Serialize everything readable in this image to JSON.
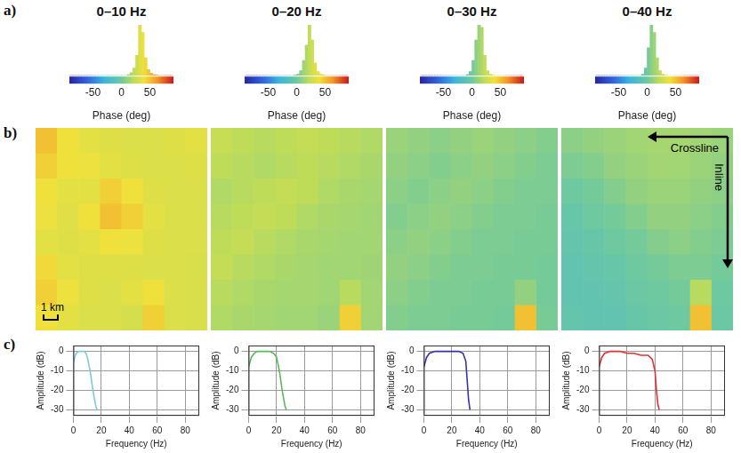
{
  "panel_labels": [
    "a)",
    "b)",
    "c)"
  ],
  "chart_data": [
    {
      "type": "histogram",
      "title": "0–10 Hz",
      "xlabel": "Phase (deg)",
      "bins": [
        -90,
        -85,
        -80,
        -75,
        -70,
        -65,
        -60,
        -55,
        -50,
        -45,
        -40,
        -35,
        -30,
        -25,
        -20,
        -15,
        -10,
        -5,
        0,
        5,
        10,
        15,
        20,
        25,
        30,
        35,
        40,
        45,
        50,
        55,
        60,
        65,
        70,
        75,
        80,
        85,
        90
      ],
      "counts": [
        0,
        0,
        0,
        0,
        0,
        0,
        0,
        0,
        0,
        0,
        0,
        0,
        0,
        0,
        0,
        0,
        0,
        0,
        0,
        0,
        2,
        6,
        15,
        40,
        100,
        85,
        35,
        12,
        5,
        2,
        1,
        0,
        0,
        0,
        0,
        0
      ],
      "xlim": [
        -90,
        90
      ],
      "xticks": [
        -50,
        0,
        50
      ],
      "ylim": [
        0,
        100
      ],
      "tick_labels": "x",
      "grid": false,
      "color_range": [
        -90,
        90
      ]
    },
    {
      "type": "histogram",
      "title": "0–20 Hz",
      "xlabel": "Phase (deg)",
      "bins": [
        -90,
        -85,
        -80,
        -75,
        -70,
        -65,
        -60,
        -55,
        -50,
        -45,
        -40,
        -35,
        -30,
        -25,
        -20,
        -15,
        -10,
        -5,
        0,
        5,
        10,
        15,
        20,
        25,
        30,
        35,
        40,
        45,
        50,
        55,
        60,
        65,
        70,
        75,
        80,
        85,
        90
      ],
      "counts": [
        0,
        0,
        0,
        0,
        0,
        0,
        0,
        0,
        0,
        0,
        0,
        0,
        0,
        0,
        0,
        0,
        0,
        1,
        3,
        10,
        30,
        60,
        100,
        70,
        25,
        8,
        3,
        1,
        0,
        0,
        0,
        0,
        0,
        0,
        0,
        0
      ],
      "xlim": [
        -90,
        90
      ],
      "xticks": [
        -50,
        0,
        50
      ],
      "ylim": [
        0,
        100
      ],
      "tick_labels": "x",
      "grid": false,
      "color_range": [
        -90,
        90
      ]
    },
    {
      "type": "histogram",
      "title": "0–30 Hz",
      "xlabel": "Phase (deg)",
      "bins": [
        -90,
        -85,
        -80,
        -75,
        -70,
        -65,
        -60,
        -55,
        -50,
        -45,
        -40,
        -35,
        -30,
        -25,
        -20,
        -15,
        -10,
        -5,
        0,
        5,
        10,
        15,
        20,
        25,
        30,
        35,
        40,
        45,
        50,
        55,
        60,
        65,
        70,
        75,
        80,
        85,
        90
      ],
      "counts": [
        0,
        0,
        0,
        0,
        0,
        0,
        0,
        0,
        0,
        0,
        0,
        0,
        0,
        0,
        0,
        0,
        2,
        8,
        30,
        70,
        100,
        95,
        40,
        10,
        3,
        1,
        0,
        0,
        0,
        0,
        0,
        0,
        0,
        0,
        0,
        0
      ],
      "xlim": [
        -90,
        90
      ],
      "xticks": [
        -50,
        0,
        50
      ],
      "ylim": [
        0,
        100
      ],
      "tick_labels": "x",
      "grid": false,
      "color_range": [
        -90,
        90
      ]
    },
    {
      "type": "histogram",
      "title": "0–40 Hz",
      "xlabel": "Phase (deg)",
      "bins": [
        -90,
        -85,
        -80,
        -75,
        -70,
        -65,
        -60,
        -55,
        -50,
        -45,
        -40,
        -35,
        -30,
        -25,
        -20,
        -15,
        -10,
        -5,
        0,
        5,
        10,
        15,
        20,
        25,
        30,
        35,
        40,
        45,
        50,
        55,
        60,
        65,
        70,
        75,
        80,
        85,
        90
      ],
      "counts": [
        0,
        0,
        0,
        0,
        0,
        0,
        0,
        0,
        0,
        0,
        0,
        0,
        0,
        0,
        0,
        0,
        3,
        15,
        55,
        100,
        85,
        35,
        10,
        3,
        1,
        0,
        0,
        0,
        0,
        0,
        0,
        0,
        0,
        0,
        0,
        0
      ],
      "xlim": [
        -90,
        90
      ],
      "xticks": [
        -50,
        0,
        50
      ],
      "ylim": [
        0,
        100
      ],
      "tick_labels": "x",
      "grid": false,
      "color_range": [
        -90,
        90
      ]
    },
    {
      "type": "heatmap",
      "scale_label": "1 km",
      "color_range": [
        -90,
        90
      ],
      "cells": [
        [
          50,
          40,
          35,
          33,
          32,
          32,
          33,
          35
        ],
        [
          45,
          40,
          38,
          35,
          33,
          32,
          32,
          33
        ],
        [
          40,
          35,
          35,
          45,
          40,
          33,
          32,
          32
        ],
        [
          38,
          34,
          40,
          50,
          45,
          35,
          32,
          32
        ],
        [
          35,
          33,
          35,
          40,
          38,
          33,
          32,
          32
        ],
        [
          42,
          35,
          33,
          33,
          33,
          32,
          32,
          31
        ],
        [
          45,
          38,
          33,
          32,
          35,
          40,
          32,
          31
        ],
        [
          40,
          35,
          32,
          32,
          30,
          45,
          32,
          31
        ]
      ]
    },
    {
      "type": "heatmap",
      "color_range": [
        -90,
        90
      ],
      "cells": [
        [
          25,
          22,
          20,
          22,
          24,
          22,
          20,
          18
        ],
        [
          22,
          20,
          18,
          20,
          22,
          20,
          18,
          16
        ],
        [
          18,
          20,
          22,
          24,
          22,
          18,
          16,
          15
        ],
        [
          20,
          22,
          24,
          22,
          18,
          16,
          15,
          14
        ],
        [
          22,
          24,
          20,
          18,
          16,
          15,
          14,
          14
        ],
        [
          24,
          20,
          18,
          16,
          15,
          14,
          14,
          13
        ],
        [
          20,
          18,
          16,
          15,
          15,
          14,
          20,
          14
        ],
        [
          18,
          16,
          15,
          14,
          14,
          12,
          45,
          14
        ]
      ]
    },
    {
      "type": "heatmap",
      "color_range": [
        -90,
        90
      ],
      "cells": [
        [
          12,
          10,
          8,
          10,
          12,
          10,
          8,
          6
        ],
        [
          10,
          8,
          6,
          8,
          10,
          8,
          6,
          4
        ],
        [
          8,
          6,
          8,
          10,
          8,
          6,
          4,
          4
        ],
        [
          6,
          8,
          10,
          8,
          6,
          4,
          4,
          3
        ],
        [
          8,
          10,
          8,
          6,
          4,
          4,
          3,
          3
        ],
        [
          10,
          8,
          6,
          4,
          4,
          3,
          3,
          2
        ],
        [
          8,
          6,
          4,
          4,
          3,
          3,
          10,
          2
        ],
        [
          6,
          4,
          4,
          3,
          3,
          2,
          50,
          3
        ]
      ]
    },
    {
      "type": "heatmap",
      "xlabel": "Crossline",
      "ylabel": "Inline",
      "color_range": [
        -90,
        90
      ],
      "cells": [
        [
          8,
          10,
          12,
          14,
          15,
          15,
          14,
          12
        ],
        [
          4,
          6,
          10,
          12,
          14,
          14,
          12,
          10
        ],
        [
          0,
          2,
          6,
          10,
          12,
          12,
          10,
          8
        ],
        [
          -4,
          0,
          2,
          6,
          10,
          10,
          8,
          6
        ],
        [
          -6,
          -4,
          0,
          2,
          6,
          8,
          6,
          4
        ],
        [
          -8,
          -6,
          -4,
          0,
          2,
          4,
          4,
          2
        ],
        [
          -8,
          -8,
          -6,
          -2,
          0,
          2,
          20,
          0
        ],
        [
          -6,
          -8,
          -8,
          -4,
          -2,
          0,
          50,
          -2
        ]
      ]
    },
    {
      "type": "line",
      "xlabel": "Frequency (Hz)",
      "ylabel": "Amplitude (dB)",
      "x": [
        0,
        1,
        2,
        4,
        6,
        8,
        9,
        10,
        12,
        14,
        16,
        17
      ],
      "series": [
        {
          "color": "#7ec8e3",
          "values": [
            -6,
            -3,
            -1,
            0,
            0,
            0,
            -1,
            -3,
            -10,
            -20,
            -28,
            -30
          ]
        }
      ],
      "xlim": [
        0,
        90
      ],
      "xticks": [
        0,
        20,
        40,
        60,
        80
      ],
      "ylim": [
        -33,
        3
      ],
      "yticks": [
        -30,
        -20,
        -10,
        0
      ],
      "grid": true
    },
    {
      "type": "line",
      "xlabel": "Frequency (Hz)",
      "ylabel": "Amplitude (dB)",
      "x": [
        0,
        2,
        4,
        6,
        10,
        15,
        18,
        20,
        22,
        24,
        26,
        27
      ],
      "series": [
        {
          "color": "#5cb85c",
          "values": [
            -8,
            -3,
            -1,
            0,
            0,
            0,
            -1,
            -3,
            -10,
            -20,
            -28,
            -30
          ]
        }
      ],
      "xlim": [
        0,
        90
      ],
      "xticks": [
        0,
        20,
        40,
        60,
        80
      ],
      "ylim": [
        -33,
        3
      ],
      "yticks": [
        -30,
        -20,
        -10,
        0
      ],
      "grid": true
    },
    {
      "type": "line",
      "xlabel": "Frequency (Hz)",
      "ylabel": "Amplitude (dB)",
      "x": [
        0,
        2,
        4,
        8,
        15,
        20,
        25,
        28,
        30,
        31,
        32,
        33
      ],
      "series": [
        {
          "color": "#3333aa",
          "values": [
            -8,
            -3,
            -1,
            0,
            0,
            0,
            0,
            -1,
            -5,
            -15,
            -25,
            -30
          ]
        }
      ],
      "xlim": [
        0,
        90
      ],
      "xticks": [
        0,
        20,
        40,
        60,
        80
      ],
      "ylim": [
        -33,
        3
      ],
      "yticks": [
        -30,
        -20,
        -10,
        0
      ],
      "grid": true
    },
    {
      "type": "line",
      "xlabel": "Frequency (Hz)",
      "ylabel": "Amplitude (dB)",
      "x": [
        0,
        2,
        4,
        8,
        15,
        20,
        25,
        30,
        35,
        38,
        40,
        41,
        42,
        43
      ],
      "series": [
        {
          "color": "#e03030",
          "values": [
            -8,
            -3,
            -1,
            0,
            0,
            -1,
            -1,
            -2,
            -2,
            -4,
            -10,
            -20,
            -27,
            -30
          ]
        }
      ],
      "xlim": [
        0,
        90
      ],
      "xticks": [
        0,
        20,
        40,
        60,
        80
      ],
      "ylim": [
        -33,
        3
      ],
      "yticks": [
        -30,
        -20,
        -10,
        0
      ],
      "grid": true
    }
  ]
}
